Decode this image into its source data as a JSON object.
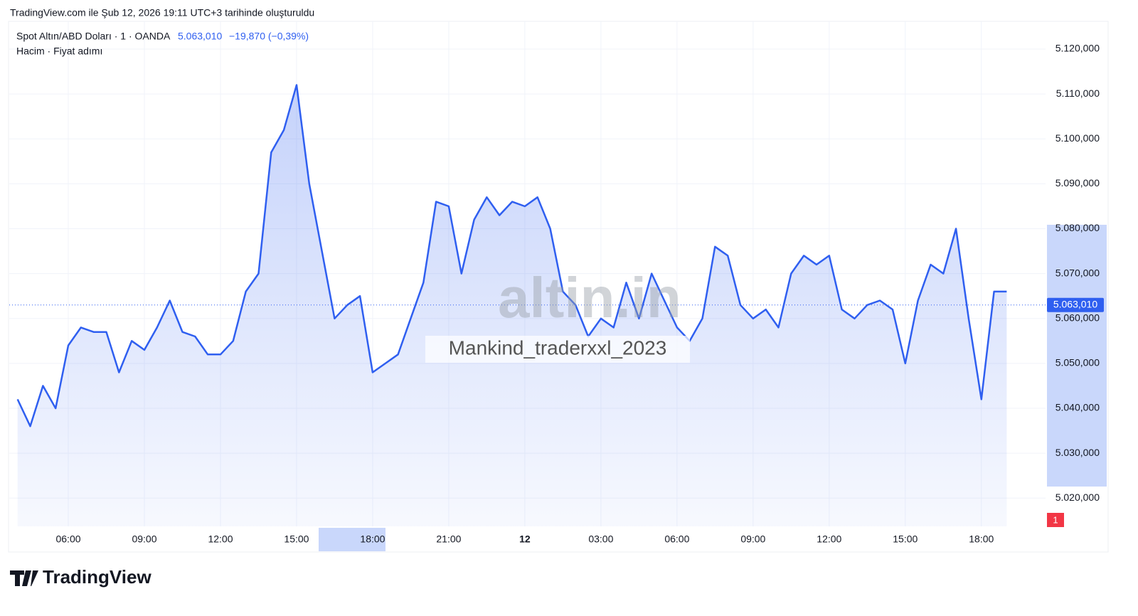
{
  "chart_data": {
    "type": "line",
    "caption": "TradingView.com ile Şub 12, 2026 19:11 UTC+3 tarihinde oluşturuldu",
    "title": "Spot Altın/ABD Doları · 1 · OANDA",
    "change": "−19,870 (−0,39%)",
    "subtitle": "Hacim · Fiyat adımı",
    "watermark": "altin.in",
    "author": "Mankind_traderxxl_2023",
    "brand": "TradingView",
    "badge": "1",
    "last_price": {
      "value": 5063.01,
      "label": "5.063,010"
    },
    "categories": [
      null,
      null,
      null,
      null,
      "06:00",
      null,
      null,
      null,
      null,
      null,
      "09:00",
      null,
      null,
      null,
      null,
      null,
      "12:00",
      null,
      null,
      null,
      null,
      null,
      "15:00",
      null,
      null,
      null,
      null,
      null,
      "18:00",
      null,
      null,
      null,
      null,
      null,
      "21:00",
      null,
      null,
      null,
      null,
      null,
      "12",
      null,
      null,
      null,
      null,
      null,
      "03:00",
      null,
      null,
      null,
      null,
      null,
      "06:00",
      null,
      null,
      null,
      null,
      null,
      "09:00",
      null,
      null,
      null,
      null,
      null,
      "12:00",
      null,
      null,
      null,
      null,
      null,
      "15:00",
      null,
      null,
      null,
      null,
      null,
      "18:00",
      null,
      null
    ],
    "series": [
      {
        "name": "Spot Altın/ABD Doları",
        "color": "#2f5ff0",
        "values": [
          5042,
          5036,
          5045,
          5040,
          5054,
          5058,
          5057,
          5057,
          5048,
          5055,
          5053,
          5058,
          5064,
          5057,
          5056,
          5052,
          5052,
          5055,
          5066,
          5070,
          5097,
          5102,
          5112,
          5090,
          5075,
          5060,
          5063,
          5065,
          5048,
          5050,
          5052,
          5060,
          5068,
          5086,
          5085,
          5070,
          5082,
          5087,
          5083,
          5086,
          5085,
          5087,
          5080,
          5066,
          5063,
          5056,
          5060,
          5058,
          5068,
          5060,
          5070,
          5064,
          5058,
          5055,
          5060,
          5076,
          5074,
          5063,
          5060,
          5062,
          5058,
          5070,
          5074,
          5072,
          5074,
          5062,
          5060,
          5063,
          5064,
          5062,
          5050,
          5064,
          5072,
          5070,
          5080,
          5060,
          5042,
          5066,
          5066
        ]
      }
    ],
    "ylim": [
      5013.7,
      5124.6
    ],
    "yticks": [
      {
        "value": 5020,
        "label": "5.020,000"
      },
      {
        "value": 5030,
        "label": "5.030,000"
      },
      {
        "value": 5040,
        "label": "5.040,000"
      },
      {
        "value": 5050,
        "label": "5.050,000"
      },
      {
        "value": 5060,
        "label": "5.060,000"
      },
      {
        "value": 5070,
        "label": "5.070,000"
      },
      {
        "value": 5080,
        "label": "5.080,000"
      },
      {
        "value": 5090,
        "label": "5.090,000"
      },
      {
        "value": 5100,
        "label": "5.100,000"
      },
      {
        "value": 5110,
        "label": "5.110,000"
      },
      {
        "value": 5120,
        "label": "5.120,000"
      }
    ],
    "grid": true
  }
}
